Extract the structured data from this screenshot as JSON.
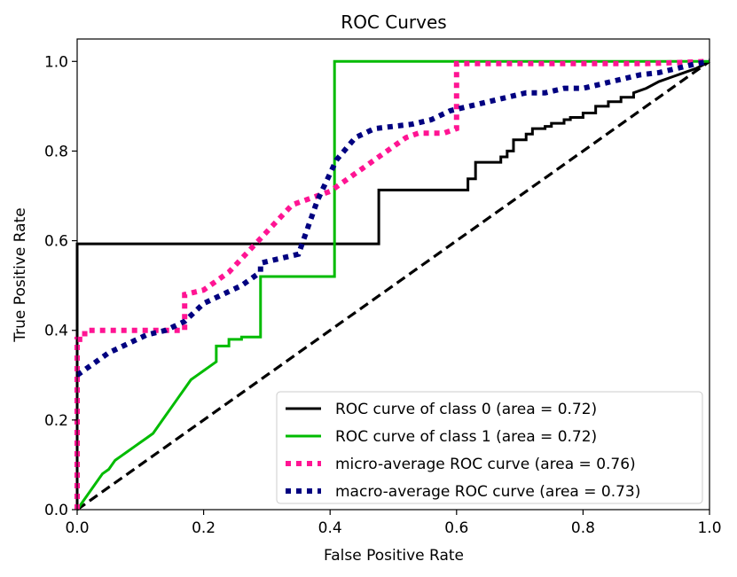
{
  "chart_data": {
    "type": "line",
    "title": "ROC Curves",
    "xlabel": "False Positive Rate",
    "ylabel": "True Positive Rate",
    "xlim": [
      0.0,
      1.0
    ],
    "ylim": [
      0.0,
      1.05
    ],
    "x_ticks": [
      "0.0",
      "0.2",
      "0.4",
      "0.6",
      "0.8",
      "1.0"
    ],
    "y_ticks": [
      "0.0",
      "0.2",
      "0.4",
      "0.6",
      "0.8",
      "1.0"
    ],
    "x_tick_values": [
      0.0,
      0.2,
      0.4,
      0.6,
      0.8,
      1.0
    ],
    "y_tick_values": [
      0.0,
      0.2,
      0.4,
      0.6,
      0.8,
      1.0
    ],
    "legend_position": "lower-right",
    "series": [
      {
        "name": "ROC curve of class 0 (area = 0.72)",
        "color": "#000000",
        "style": "solid",
        "x": [
          0.0,
          0.0,
          0.477,
          0.477,
          0.618,
          0.618,
          0.63,
          0.63,
          0.67,
          0.67,
          0.68,
          0.68,
          0.69,
          0.69,
          0.71,
          0.71,
          0.72,
          0.72,
          0.74,
          0.74,
          0.75,
          0.75,
          0.77,
          0.77,
          0.78,
          0.78,
          0.8,
          0.8,
          0.82,
          0.82,
          0.84,
          0.84,
          0.86,
          0.86,
          0.88,
          0.88,
          0.9,
          0.92,
          0.94,
          0.96,
          0.98,
          1.0
        ],
        "y": [
          0.0,
          0.593,
          0.593,
          0.713,
          0.713,
          0.738,
          0.738,
          0.775,
          0.775,
          0.787,
          0.787,
          0.8,
          0.8,
          0.825,
          0.825,
          0.838,
          0.838,
          0.85,
          0.85,
          0.855,
          0.855,
          0.862,
          0.862,
          0.87,
          0.87,
          0.875,
          0.875,
          0.885,
          0.885,
          0.9,
          0.9,
          0.91,
          0.91,
          0.92,
          0.92,
          0.93,
          0.94,
          0.955,
          0.965,
          0.975,
          0.985,
          1.0
        ]
      },
      {
        "name": "ROC curve of class 1 (area = 0.72)",
        "color": "#00bb00",
        "style": "solid",
        "x": [
          0.0,
          0.01,
          0.02,
          0.03,
          0.04,
          0.05,
          0.06,
          0.07,
          0.08,
          0.09,
          0.1,
          0.11,
          0.12,
          0.13,
          0.14,
          0.15,
          0.16,
          0.17,
          0.18,
          0.19,
          0.2,
          0.21,
          0.22,
          0.22,
          0.24,
          0.24,
          0.26,
          0.26,
          0.28,
          0.28,
          0.29,
          0.29,
          0.407,
          0.407,
          1.0
        ],
        "y": [
          0.0,
          0.02,
          0.04,
          0.06,
          0.08,
          0.09,
          0.11,
          0.12,
          0.13,
          0.14,
          0.15,
          0.16,
          0.17,
          0.19,
          0.21,
          0.23,
          0.25,
          0.27,
          0.29,
          0.3,
          0.31,
          0.32,
          0.33,
          0.365,
          0.365,
          0.38,
          0.38,
          0.385,
          0.385,
          0.385,
          0.385,
          0.52,
          0.52,
          1.0,
          1.0
        ]
      },
      {
        "name": "micro-average ROC curve (area = 0.76)",
        "color": "#ff1493",
        "style": "dotted",
        "x": [
          0.0,
          0.0,
          0.012,
          0.012,
          0.17,
          0.17,
          0.2,
          0.22,
          0.24,
          0.26,
          0.28,
          0.3,
          0.32,
          0.34,
          0.36,
          0.38,
          0.4,
          0.42,
          0.44,
          0.46,
          0.48,
          0.5,
          0.52,
          0.54,
          0.56,
          0.58,
          0.6,
          0.6,
          0.64,
          0.7,
          0.8,
          0.9,
          1.0
        ],
        "y": [
          0.0,
          0.38,
          0.38,
          0.4,
          0.4,
          0.48,
          0.49,
          0.51,
          0.53,
          0.56,
          0.59,
          0.62,
          0.65,
          0.68,
          0.69,
          0.7,
          0.71,
          0.73,
          0.75,
          0.77,
          0.79,
          0.81,
          0.83,
          0.84,
          0.84,
          0.84,
          0.85,
          0.995,
          0.995,
          0.995,
          0.995,
          0.995,
          1.0
        ]
      },
      {
        "name": "macro-average ROC curve (area = 0.73)",
        "color": "#000080",
        "style": "dotted",
        "x": [
          0.0,
          0.02,
          0.05,
          0.08,
          0.11,
          0.14,
          0.17,
          0.2,
          0.23,
          0.26,
          0.29,
          0.29,
          0.35,
          0.38,
          0.41,
          0.44,
          0.47,
          0.5,
          0.53,
          0.56,
          0.59,
          0.62,
          0.65,
          0.68,
          0.71,
          0.74,
          0.77,
          0.8,
          0.83,
          0.86,
          0.89,
          0.92,
          0.95,
          0.98,
          1.0
        ],
        "y": [
          0.3,
          0.32,
          0.35,
          0.37,
          0.39,
          0.4,
          0.42,
          0.46,
          0.48,
          0.5,
          0.53,
          0.55,
          0.57,
          0.69,
          0.78,
          0.83,
          0.85,
          0.855,
          0.86,
          0.87,
          0.89,
          0.9,
          0.91,
          0.92,
          0.93,
          0.93,
          0.94,
          0.94,
          0.95,
          0.96,
          0.97,
          0.975,
          0.985,
          0.995,
          1.0
        ]
      },
      {
        "name": "chance",
        "color": "#000000",
        "style": "dashed",
        "in_legend": false,
        "x": [
          0.0,
          1.0
        ],
        "y": [
          0.0,
          1.0
        ]
      }
    ],
    "legend": [
      "ROC curve of class 0 (area = 0.72)",
      "ROC curve of class 1 (area = 0.72)",
      "micro-average ROC curve (area = 0.76)",
      "macro-average ROC curve (area = 0.73)"
    ]
  }
}
